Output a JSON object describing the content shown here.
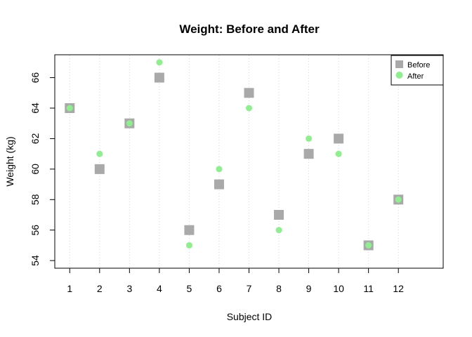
{
  "chart_data": {
    "type": "scatter",
    "title": "Weight: Before and After",
    "xlabel": "Subject ID",
    "ylabel": "Weight (kg)",
    "x": [
      1,
      2,
      3,
      4,
      5,
      6,
      7,
      8,
      9,
      10,
      11,
      12
    ],
    "x_tick_labels": [
      "1",
      "2",
      "3",
      "4",
      "5",
      "6",
      "7",
      "8",
      "9",
      "10",
      "11",
      "12"
    ],
    "y_ticks": [
      54,
      56,
      58,
      60,
      62,
      64,
      66
    ],
    "y_tick_labels": [
      "54",
      "56",
      "58",
      "60",
      "62",
      "64",
      "66"
    ],
    "xlim": [
      0.5,
      13.5
    ],
    "ylim": [
      53.5,
      67.5
    ],
    "grid": "vertical dotted",
    "legend_position": "top-right",
    "series": [
      {
        "name": "Before",
        "marker": "square",
        "color": "#a9a9a9",
        "values": [
          64,
          60,
          63,
          66,
          56,
          59,
          65,
          57,
          61,
          62,
          55,
          58
        ]
      },
      {
        "name": "After",
        "marker": "circle",
        "color": "#90ee90",
        "values": [
          64,
          61,
          63,
          67,
          55,
          60,
          64,
          56,
          62,
          61,
          55,
          58
        ]
      }
    ]
  }
}
